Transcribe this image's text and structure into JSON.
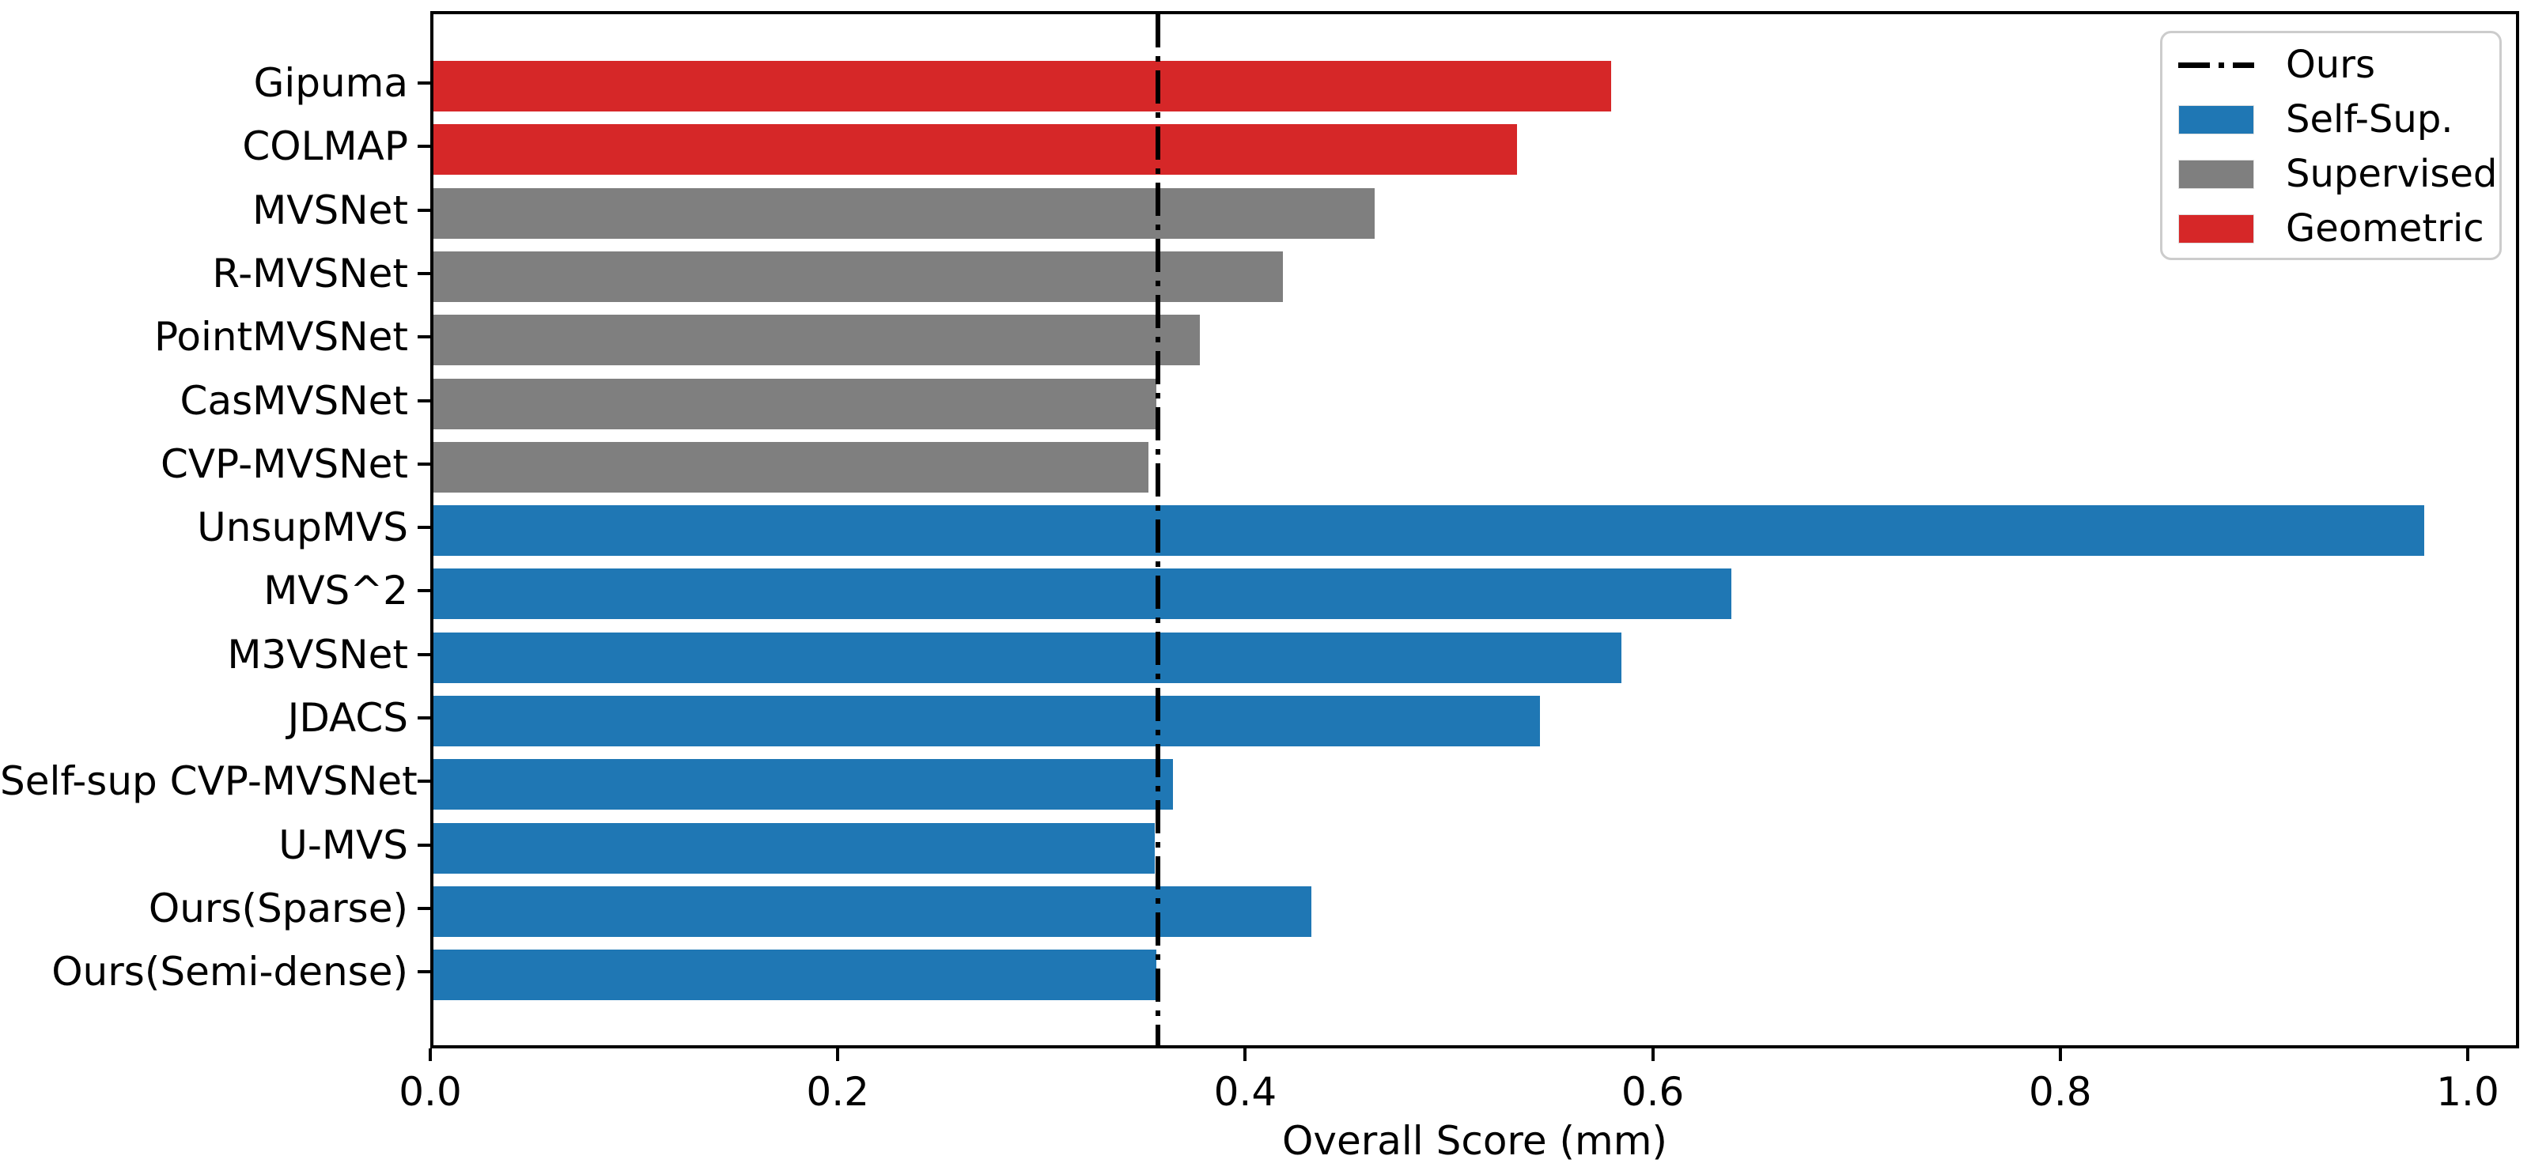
{
  "chart_data": {
    "type": "bar",
    "orientation": "horizontal",
    "title": "",
    "xlabel": "Overall Score (mm)",
    "xlim": [
      0.0,
      1.025
    ],
    "xticks": [
      0.0,
      0.2,
      0.4,
      0.6,
      0.8,
      1.0
    ],
    "grid": false,
    "categories": [
      "Gipuma",
      "COLMAP",
      "MVSNet",
      "R-MVSNet",
      "PointMVSNet",
      "CasMVSNet",
      "CVP-MVSNet",
      "UnsupMVS",
      "MVS^2",
      "M3VSNet",
      "JDACS",
      "Self-sup CVP-MVSNet",
      "U-MVS",
      "Ours(Sparse)",
      "Ours(Semi-dense)"
    ],
    "values": [
      0.578,
      0.532,
      0.462,
      0.417,
      0.376,
      0.355,
      0.351,
      0.977,
      0.637,
      0.583,
      0.543,
      0.363,
      0.354,
      0.431,
      0.355
    ],
    "groups": [
      "Geometric",
      "Geometric",
      "Supervised",
      "Supervised",
      "Supervised",
      "Supervised",
      "Supervised",
      "Self-Sup.",
      "Self-Sup.",
      "Self-Sup.",
      "Self-Sup.",
      "Self-Sup.",
      "Self-Sup.",
      "Self-Sup.",
      "Self-Sup."
    ],
    "group_colors": {
      "Self-Sup.": "#1f77b4",
      "Supervised": "#7f7f7f",
      "Geometric": "#d62728"
    },
    "reference_line": {
      "label": "Ours",
      "value": 0.3555,
      "color": "#000000",
      "style": "dash-dot"
    },
    "legend": {
      "position": "top-right",
      "entries": [
        {
          "label": "Ours",
          "type": "line",
          "color": "#000000"
        },
        {
          "label": "Self-Sup.",
          "type": "patch",
          "color": "#1f77b4"
        },
        {
          "label": "Supervised",
          "type": "patch",
          "color": "#7f7f7f"
        },
        {
          "label": "Geometric",
          "type": "patch",
          "color": "#d62728"
        }
      ]
    }
  }
}
